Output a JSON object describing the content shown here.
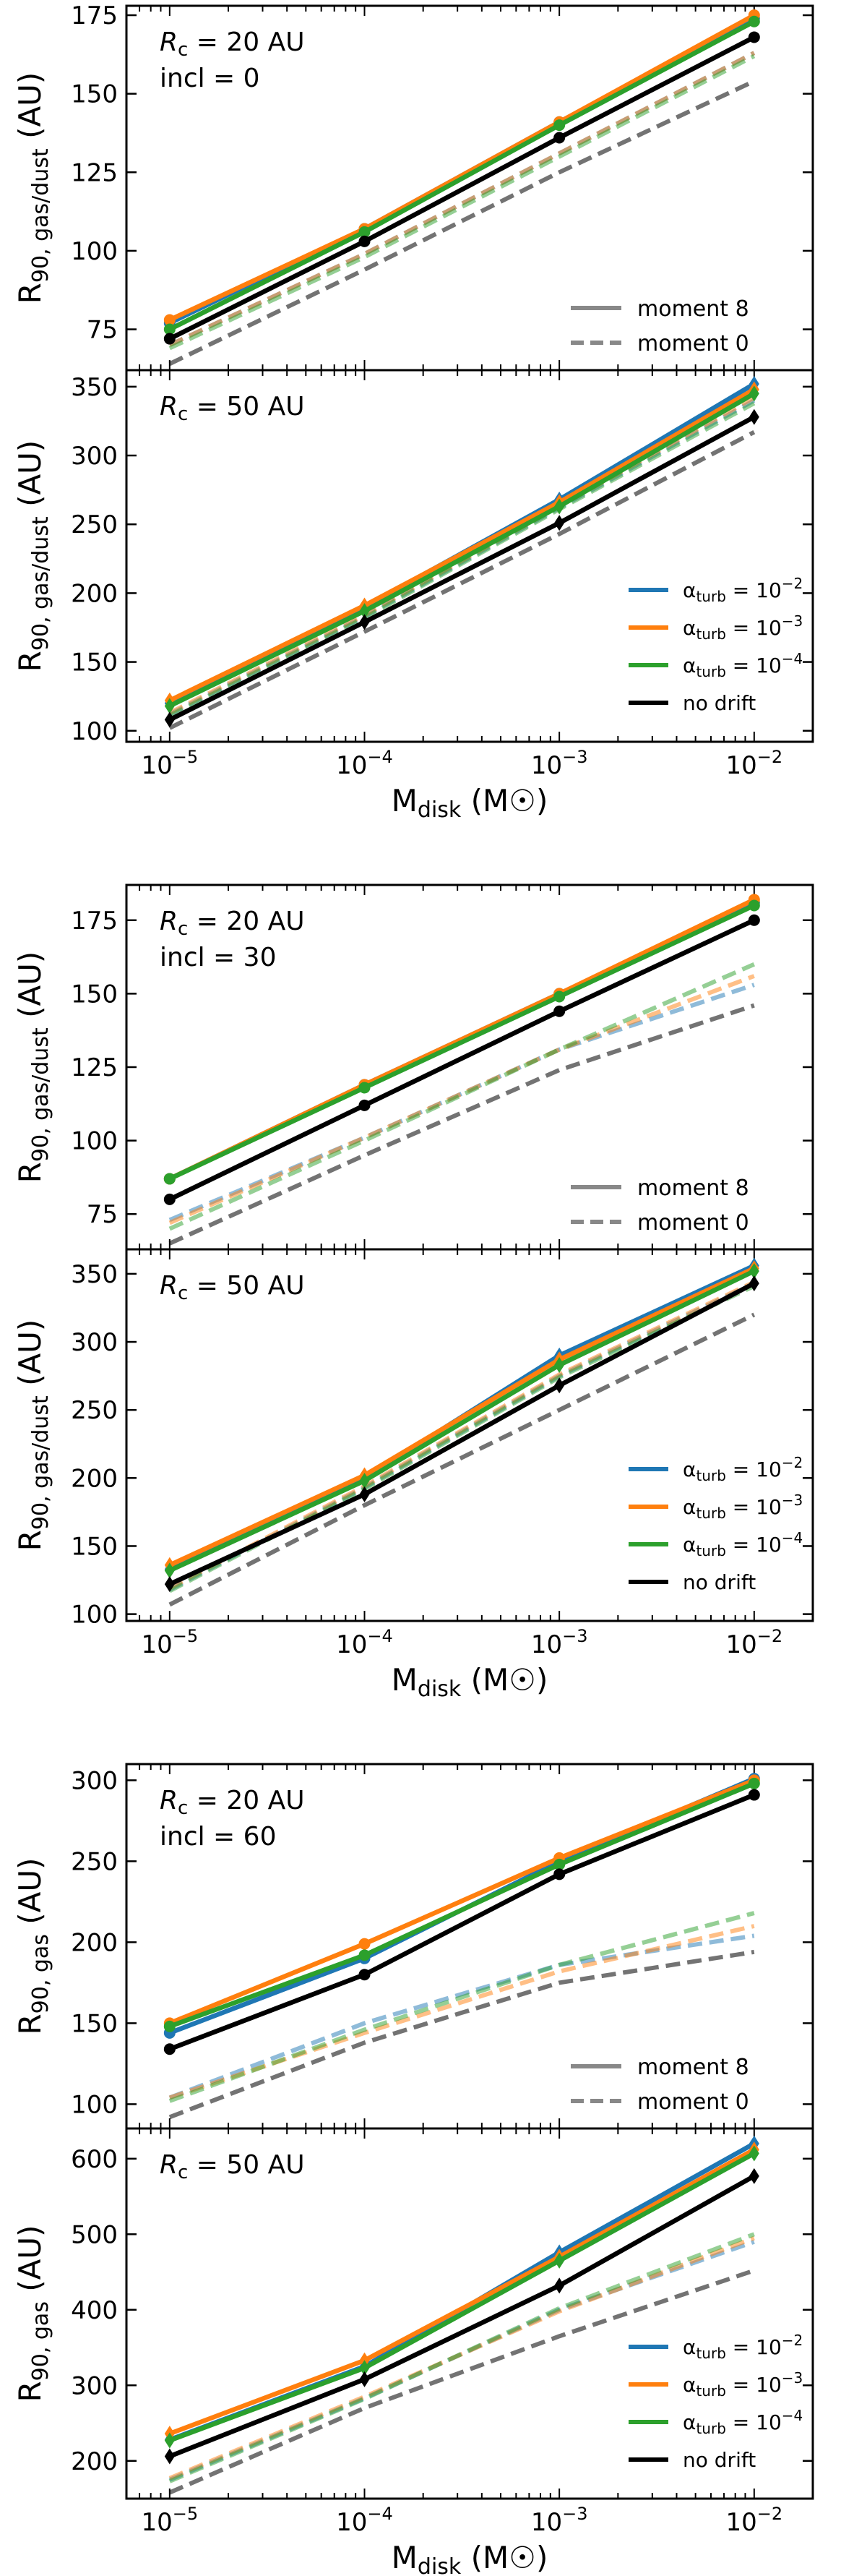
{
  "colors": {
    "alpha_1e-2": "#1f77b4",
    "alpha_1e-3": "#ff7f0e",
    "alpha_1e-4": "#2ca02c",
    "no_drift": "#000000",
    "moment_legend": "#888888"
  },
  "legend_moments": [
    "moment 8",
    "moment 0"
  ],
  "legend_alpha": [
    "α_turb = 10^-2",
    "α_turb = 10^-3",
    "α_turb = 10^-4",
    "no drift"
  ],
  "chart_data": [
    {
      "type": "line",
      "title": "",
      "text_lines": [
        "Rc = 20 AU",
        "incl = 0"
      ],
      "ylabel": "R90, gas/dust (AU)",
      "xlabel": "",
      "x": [
        1e-05,
        0.0001,
        0.001,
        0.01
      ],
      "x_scale": "log",
      "xlim": [
        6e-06,
        0.02
      ],
      "ylim": [
        62,
        178
      ],
      "yticks": [
        75,
        100,
        125,
        150,
        175
      ],
      "legend": "moments",
      "series": [
        {
          "name": "α_turb = 10^-2, moment 8",
          "key": "alpha_1e-2",
          "style": "solid",
          "values": [
            77,
            107,
            141,
            174
          ]
        },
        {
          "name": "α_turb = 10^-3, moment 8",
          "key": "alpha_1e-3",
          "style": "solid",
          "values": [
            78,
            107,
            141,
            175
          ]
        },
        {
          "name": "α_turb = 10^-4, moment 8",
          "key": "alpha_1e-4",
          "style": "solid",
          "values": [
            75,
            106,
            140,
            173
          ]
        },
        {
          "name": "no drift, moment 8",
          "key": "no_drift",
          "style": "solid",
          "values": [
            72,
            103,
            136,
            168
          ]
        },
        {
          "name": "α_turb = 10^-2, moment 0",
          "key": "alpha_1e-2",
          "style": "dashed",
          "values": [
            70,
            99,
            131,
            163
          ]
        },
        {
          "name": "α_turb = 10^-3, moment 0",
          "key": "alpha_1e-3",
          "style": "dashed",
          "values": [
            70,
            99,
            131,
            163
          ]
        },
        {
          "name": "α_turb = 10^-4, moment 0",
          "key": "alpha_1e-4",
          "style": "dashed",
          "values": [
            69,
            98,
            130,
            162
          ]
        },
        {
          "name": "no drift, moment 0",
          "key": "no_drift",
          "style": "dashed",
          "values": [
            64,
            94,
            125,
            154
          ]
        }
      ]
    },
    {
      "type": "line",
      "title": "",
      "text_lines": [
        "Rc = 50 AU"
      ],
      "ylabel": "R90, gas/dust (AU)",
      "xlabel": "Mdisk (M☉)",
      "x": [
        1e-05,
        0.0001,
        0.001,
        0.01
      ],
      "x_scale": "log",
      "xlim": [
        6e-06,
        0.02
      ],
      "ylim": [
        92,
        362
      ],
      "yticks": [
        100,
        150,
        200,
        250,
        300,
        350
      ],
      "legend": "alpha",
      "series": [
        {
          "name": "α_turb = 10^-2, moment 8",
          "key": "alpha_1e-2",
          "style": "solid",
          "values": [
            120,
            190,
            268,
            352
          ]
        },
        {
          "name": "α_turb = 10^-3, moment 8",
          "key": "alpha_1e-3",
          "style": "solid",
          "values": [
            122,
            191,
            266,
            348
          ]
        },
        {
          "name": "α_turb = 10^-4, moment 8",
          "key": "alpha_1e-4",
          "style": "solid",
          "values": [
            118,
            187,
            263,
            345
          ]
        },
        {
          "name": "no drift, moment 8",
          "key": "no_drift",
          "style": "solid",
          "values": [
            108,
            179,
            251,
            328
          ]
        },
        {
          "name": "α_turb = 10^-2, moment 0",
          "key": "alpha_1e-2",
          "style": "dashed",
          "values": [
            112,
            183,
            262,
            340
          ]
        },
        {
          "name": "α_turb = 10^-3, moment 0",
          "key": "alpha_1e-3",
          "style": "dashed",
          "values": [
            113,
            184,
            263,
            342
          ]
        },
        {
          "name": "α_turb = 10^-4, moment 0",
          "key": "alpha_1e-4",
          "style": "dashed",
          "values": [
            111,
            182,
            261,
            338
          ]
        },
        {
          "name": "no drift, moment 0",
          "key": "no_drift",
          "style": "dashed",
          "values": [
            102,
            172,
            243,
            317
          ]
        }
      ]
    },
    {
      "type": "line",
      "title": "",
      "text_lines": [
        "Rc = 20 AU",
        "incl = 30"
      ],
      "ylabel": "R90, gas/dust (AU)",
      "xlabel": "",
      "x": [
        1e-05,
        0.0001,
        0.001,
        0.01
      ],
      "x_scale": "log",
      "xlim": [
        6e-06,
        0.02
      ],
      "ylim": [
        63,
        187
      ],
      "yticks": [
        75,
        100,
        125,
        150,
        175
      ],
      "legend": "moments",
      "series": [
        {
          "name": "α_turb = 10^-2, moment 8",
          "key": "alpha_1e-2",
          "style": "solid",
          "values": [
            87,
            119,
            150,
            181
          ]
        },
        {
          "name": "α_turb = 10^-3, moment 8",
          "key": "alpha_1e-3",
          "style": "solid",
          "values": [
            87,
            119,
            150,
            182
          ]
        },
        {
          "name": "α_turb = 10^-4, moment 8",
          "key": "alpha_1e-4",
          "style": "solid",
          "values": [
            87,
            118,
            149,
            180
          ]
        },
        {
          "name": "no drift, moment 8",
          "key": "no_drift",
          "style": "solid",
          "values": [
            80,
            112,
            144,
            175
          ]
        },
        {
          "name": "α_turb = 10^-2, moment 0",
          "key": "alpha_1e-2",
          "style": "dashed",
          "values": [
            73,
            101,
            131,
            153
          ]
        },
        {
          "name": "α_turb = 10^-3, moment 0",
          "key": "alpha_1e-3",
          "style": "dashed",
          "values": [
            72,
            101,
            131,
            156
          ]
        },
        {
          "name": "α_turb = 10^-4, moment 0",
          "key": "alpha_1e-4",
          "style": "dashed",
          "values": [
            70,
            100,
            131,
            160
          ]
        },
        {
          "name": "no drift, moment 0",
          "key": "no_drift",
          "style": "dashed",
          "values": [
            65,
            95,
            124,
            146
          ]
        }
      ]
    },
    {
      "type": "line",
      "title": "",
      "text_lines": [
        "Rc = 50 AU"
      ],
      "ylabel": "R90, gas/dust (AU)",
      "xlabel": "Mdisk (M☉)",
      "x": [
        1e-05,
        0.0001,
        0.001,
        0.01
      ],
      "x_scale": "log",
      "xlim": [
        6e-06,
        0.02
      ],
      "ylim": [
        95,
        368
      ],
      "yticks": [
        100,
        150,
        200,
        250,
        300,
        350
      ],
      "legend": "alpha",
      "series": [
        {
          "name": "α_turb = 10^-2, moment 8",
          "key": "alpha_1e-2",
          "style": "solid",
          "values": [
            133,
            200,
            290,
            356
          ]
        },
        {
          "name": "α_turb = 10^-3, moment 8",
          "key": "alpha_1e-3",
          "style": "solid",
          "values": [
            136,
            202,
            287,
            354
          ]
        },
        {
          "name": "α_turb = 10^-4, moment 8",
          "key": "alpha_1e-4",
          "style": "solid",
          "values": [
            132,
            198,
            283,
            352
          ]
        },
        {
          "name": "no drift, moment 8",
          "key": "no_drift",
          "style": "solid",
          "values": [
            122,
            188,
            268,
            343
          ]
        },
        {
          "name": "α_turb = 10^-2, moment 0",
          "key": "alpha_1e-2",
          "style": "dashed",
          "values": [
            118,
            193,
            275,
            343
          ]
        },
        {
          "name": "α_turb = 10^-3, moment 0",
          "key": "alpha_1e-3",
          "style": "dashed",
          "values": [
            119,
            194,
            276,
            344
          ]
        },
        {
          "name": "α_turb = 10^-4, moment 0",
          "key": "alpha_1e-4",
          "style": "dashed",
          "values": [
            117,
            192,
            274,
            341
          ]
        },
        {
          "name": "no drift, moment 0",
          "key": "no_drift",
          "style": "dashed",
          "values": [
            107,
            180,
            250,
            320
          ]
        }
      ]
    },
    {
      "type": "line",
      "title": "",
      "text_lines": [
        "Rc = 20 AU",
        "incl = 60"
      ],
      "ylabel": "R90, gas (AU)",
      "xlabel": "",
      "x": [
        1e-05,
        0.0001,
        0.001,
        0.01
      ],
      "x_scale": "log",
      "xlim": [
        6e-06,
        0.02
      ],
      "ylim": [
        85,
        310
      ],
      "yticks": [
        100,
        150,
        200,
        250,
        300
      ],
      "legend": "moments",
      "series": [
        {
          "name": "α_turb = 10^-2, moment 8",
          "key": "alpha_1e-2",
          "style": "solid",
          "values": [
            144,
            190,
            250,
            301
          ]
        },
        {
          "name": "α_turb = 10^-3, moment 8",
          "key": "alpha_1e-3",
          "style": "solid",
          "values": [
            150,
            199,
            252,
            300
          ]
        },
        {
          "name": "α_turb = 10^-4, moment 8",
          "key": "alpha_1e-4",
          "style": "solid",
          "values": [
            148,
            192,
            248,
            298
          ]
        },
        {
          "name": "no drift, moment 8",
          "key": "no_drift",
          "style": "solid",
          "values": [
            134,
            180,
            242,
            291
          ]
        },
        {
          "name": "α_turb = 10^-2, moment 0",
          "key": "alpha_1e-2",
          "style": "dashed",
          "values": [
            104,
            150,
            186,
            204
          ]
        },
        {
          "name": "α_turb = 10^-3, moment 0",
          "key": "alpha_1e-3",
          "style": "dashed",
          "values": [
            104,
            144,
            182,
            210
          ]
        },
        {
          "name": "α_turb = 10^-4, moment 0",
          "key": "alpha_1e-4",
          "style": "dashed",
          "values": [
            102,
            146,
            186,
            218
          ]
        },
        {
          "name": "no drift, moment 0",
          "key": "no_drift",
          "style": "dashed",
          "values": [
            92,
            138,
            175,
            194
          ]
        }
      ]
    },
    {
      "type": "line",
      "title": "",
      "text_lines": [
        "Rc = 50 AU"
      ],
      "ylabel": "R90, gas (AU)",
      "xlabel": "Mdisk (M☉)",
      "x": [
        1e-05,
        0.0001,
        0.001,
        0.01
      ],
      "x_scale": "log",
      "xlim": [
        6e-06,
        0.02
      ],
      "ylim": [
        150,
        640
      ],
      "yticks": [
        200,
        300,
        400,
        500,
        600
      ],
      "legend": "alpha",
      "series": [
        {
          "name": "α_turb = 10^-2, moment 8",
          "key": "alpha_1e-2",
          "style": "solid",
          "values": [
            228,
            325,
            476,
            620
          ]
        },
        {
          "name": "α_turb = 10^-3, moment 8",
          "key": "alpha_1e-3",
          "style": "solid",
          "values": [
            236,
            333,
            470,
            612
          ]
        },
        {
          "name": "α_turb = 10^-4, moment 8",
          "key": "alpha_1e-4",
          "style": "solid",
          "values": [
            227,
            323,
            465,
            607
          ]
        },
        {
          "name": "no drift, moment 8",
          "key": "no_drift",
          "style": "solid",
          "values": [
            206,
            308,
            432,
            577
          ]
        },
        {
          "name": "α_turb = 10^-2, moment 0",
          "key": "alpha_1e-2",
          "style": "dashed",
          "values": [
            175,
            283,
            400,
            490
          ]
        },
        {
          "name": "α_turb = 10^-3, moment 0",
          "key": "alpha_1e-3",
          "style": "dashed",
          "values": [
            177,
            285,
            398,
            495
          ]
        },
        {
          "name": "α_turb = 10^-4, moment 0",
          "key": "alpha_1e-4",
          "style": "dashed",
          "values": [
            173,
            282,
            402,
            500
          ]
        },
        {
          "name": "no drift, moment 0",
          "key": "no_drift",
          "style": "dashed",
          "values": [
            158,
            270,
            365,
            452
          ]
        }
      ]
    }
  ]
}
